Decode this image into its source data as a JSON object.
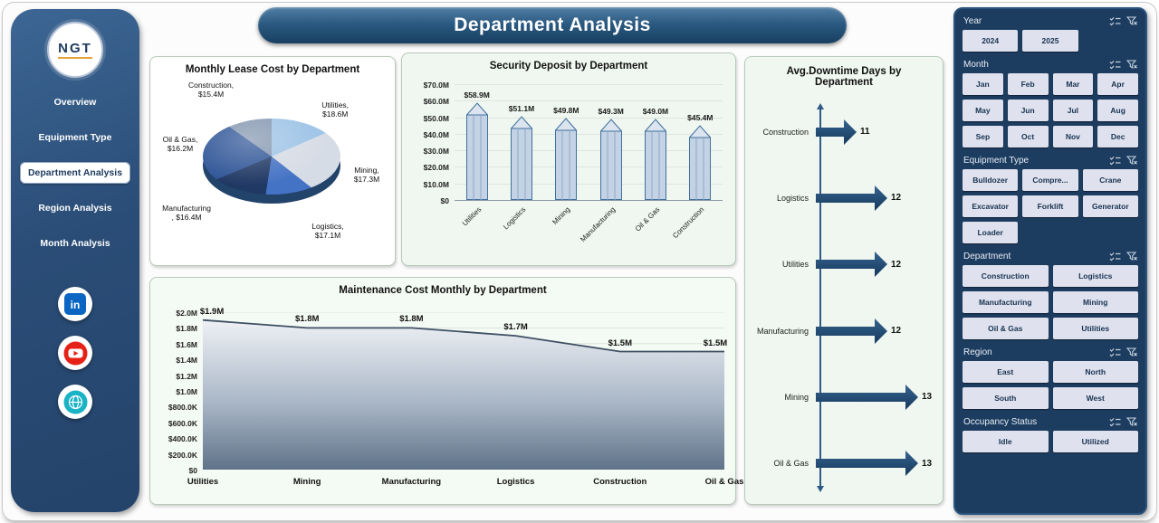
{
  "header": {
    "title": "Department Analysis"
  },
  "sidebar": {
    "logo": {
      "text": "NGT"
    },
    "items": [
      {
        "label": "Overview",
        "active": false
      },
      {
        "label": "Equipment Type",
        "active": false
      },
      {
        "label": "Department Analysis",
        "active": true
      },
      {
        "label": "Region Analysis",
        "active": false
      },
      {
        "label": "Month Analysis",
        "active": false
      }
    ],
    "social": [
      {
        "name": "linkedin",
        "color": "#0a66c2"
      },
      {
        "name": "youtube",
        "color": "#e62117"
      },
      {
        "name": "website",
        "color": "#1ab2c5"
      }
    ]
  },
  "chart_data": [
    {
      "id": "monthly-lease-cost",
      "type": "pie",
      "title": "Monthly Lease Cost by Department",
      "categories": [
        "Utilities",
        "Mining",
        "Logistics",
        "Manufacturing",
        "Oil & Gas",
        "Construction"
      ],
      "values": [
        18.6,
        17.3,
        17.1,
        16.4,
        16.2,
        15.4
      ],
      "unit": "$M",
      "labels": [
        "Utilities, $18.6M",
        "Mining, $17.3M",
        "Logistics, $17.1M",
        "Manufacturing, $16.4M",
        "Oil & Gas, $16.2M",
        "Construction, $15.4M"
      ],
      "colors": [
        "#9dc3e6",
        "#d6dce5",
        "#4472c4",
        "#203864",
        "#2f5597",
        "#8496b0"
      ]
    },
    {
      "id": "security-deposit",
      "type": "bar",
      "title": "Security Deposit by Department",
      "categories": [
        "Utilities",
        "Logistics",
        "Mining",
        "Manufacturing",
        "Oil & Gas",
        "Construction"
      ],
      "values": [
        58.9,
        51.1,
        49.8,
        49.3,
        49.0,
        45.4
      ],
      "value_labels": [
        "$58.9M",
        "$51.1M",
        "$49.8M",
        "$49.3M",
        "$49.0M",
        "$45.4M"
      ],
      "ylim": [
        0,
        70
      ],
      "y_ticks": [
        "$70.0M",
        "$60.0M",
        "$50.0M",
        "$40.0M",
        "$30.0M",
        "$20.0M",
        "$10.0M",
        "$0"
      ]
    },
    {
      "id": "avg-downtime",
      "type": "bar",
      "orientation": "horizontal",
      "title": "Avg.Downtime Days by Department",
      "categories": [
        "Construction",
        "Logistics",
        "Utilities",
        "Manufacturing",
        "Mining",
        "Oil & Gas"
      ],
      "values": [
        11,
        12,
        12,
        12,
        13,
        13
      ],
      "xlim": [
        10,
        13.5
      ]
    },
    {
      "id": "maintenance-cost",
      "type": "area",
      "title": "Maintenance Cost Monthly by Department",
      "categories": [
        "Utilities",
        "Mining",
        "Manufacturing",
        "Logistics",
        "Construction",
        "Oil & Gas"
      ],
      "values": [
        1.9,
        1.8,
        1.8,
        1.7,
        1.5,
        1.5
      ],
      "value_labels": [
        "$1.9M",
        "$1.8M",
        "$1.8M",
        "$1.7M",
        "$1.5M",
        "$1.5M"
      ],
      "ylim": [
        0,
        2
      ],
      "y_ticks": [
        "$2.0M",
        "$1.8M",
        "$1.6M",
        "$1.4M",
        "$1.2M",
        "$1.0M",
        "$800.0K",
        "$600.0K",
        "$400.0K",
        "$200.0K",
        "$0"
      ]
    }
  ],
  "slicers": [
    {
      "label": "Year",
      "cols": 3,
      "options": [
        "2024",
        "2025"
      ]
    },
    {
      "label": "Month",
      "cols": 4,
      "options": [
        "Jan",
        "Feb",
        "Mar",
        "Apr",
        "May",
        "Jun",
        "Jul",
        "Aug",
        "Sep",
        "Oct",
        "Nov",
        "Dec"
      ]
    },
    {
      "label": "Equipment Type",
      "cols": 3,
      "options": [
        "Bulldozer",
        "Compre...",
        "Crane",
        "Excavator",
        "Forklift",
        "Generator",
        "Loader"
      ]
    },
    {
      "label": "Department",
      "cols": 2,
      "options": [
        "Construction",
        "Logistics",
        "Manufacturing",
        "Mining",
        "Oil & Gas",
        "Utilities"
      ]
    },
    {
      "label": "Region",
      "cols": 2,
      "options": [
        "East",
        "North",
        "South",
        "West"
      ]
    },
    {
      "label": "Occupancy Status",
      "cols": 2,
      "options": [
        "Idle",
        "Utilized"
      ]
    }
  ],
  "colors": {
    "navy": "#1d3d60",
    "arrow": "#1f4e79",
    "pencil_fill": "#c3d2e5",
    "pencil_stroke": "#41719c",
    "button_bg": "#dfe2ee",
    "panel_green": "#eff7f0"
  }
}
